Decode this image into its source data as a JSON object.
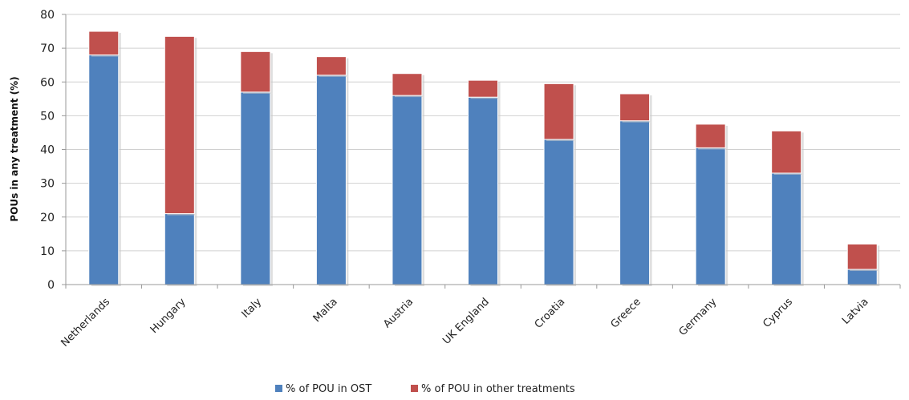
{
  "chart_data": {
    "type": "bar",
    "stacked": true,
    "ylabel": "POUs in any treatment (%)",
    "xlabel": "",
    "ylim": [
      0,
      80
    ],
    "yticks": [
      0,
      10,
      20,
      30,
      40,
      50,
      60,
      70,
      80
    ],
    "grid": true,
    "legend_position": "bottom",
    "categories": [
      "Netherlands",
      "Hungary",
      "Italy",
      "Malta",
      "Austria",
      "UK England",
      "Croatia",
      "Greece",
      "Germany",
      "Cyprus",
      "Latvia"
    ],
    "series": [
      {
        "name": "% of POU  in OST",
        "color": "#4f81bd",
        "values": [
          68,
          21,
          57,
          62,
          56,
          55.5,
          43,
          48.5,
          40.5,
          33,
          4.5
        ]
      },
      {
        "name": "% of POU  in other treatments",
        "color": "#c0504d",
        "values": [
          7,
          52.5,
          12,
          5.5,
          6.5,
          5,
          16.5,
          8,
          7,
          12.5,
          7.5
        ]
      }
    ]
  }
}
